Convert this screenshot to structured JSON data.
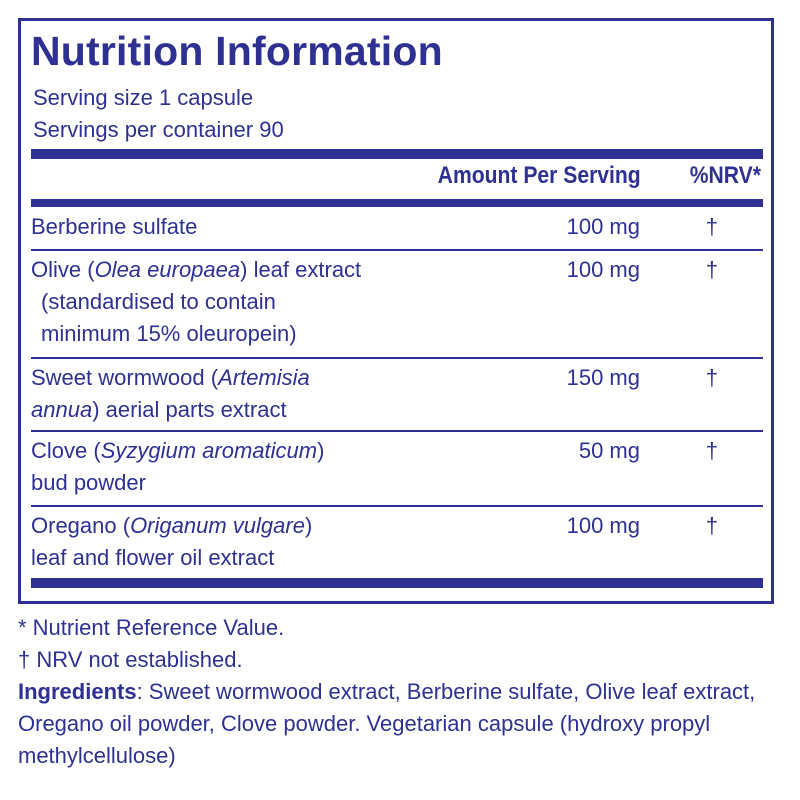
{
  "panel": {
    "title": "Nutrition Information",
    "serving_size": "Serving size  1 capsule",
    "servings_per_container": "Servings per container  90",
    "header": {
      "amount": "Amount Per Serving",
      "nrv": "%NRV*"
    },
    "rows": [
      {
        "name_plain": "Berberine sulfate",
        "amount": "100 mg",
        "nrv": "†"
      },
      {
        "name_a": "Olive (",
        "name_italic": "Olea europaea",
        "name_b": ") leaf extract",
        "name_cont1": "(standardised to contain",
        "name_cont2": "minimum 15% oleuropein)",
        "amount": "100 mg",
        "nrv": "†"
      },
      {
        "name_a": "Sweet wormwood (",
        "name_italic": "Artemisia",
        "name_line2_italic": "annua",
        "name_line2": ") aerial parts extract",
        "amount": "150 mg",
        "nrv": "†"
      },
      {
        "name_a": "Clove (",
        "name_italic": "Syzygium aromaticum",
        "name_b": ")",
        "name_line2": "bud powder",
        "amount": "50 mg",
        "nrv": "†"
      },
      {
        "name_a": "Oregano (",
        "name_italic": "Origanum vulgare",
        "name_b": ")",
        "name_line2": "leaf and flower oil extract",
        "amount": "100 mg",
        "nrv": "†"
      }
    ]
  },
  "footnotes": {
    "nrv_def": "* Nutrient Reference Value.",
    "nrv_not": "† NRV not established.",
    "ingredients_label": "Ingredients",
    "ingredients_text": ": Sweet wormwood extract, Berberine sulfate, Olive leaf extract, Oregano oil powder, Clove powder. Vegetarian capsule (hydroxy propyl methylcellulose)"
  },
  "colors": {
    "brand_blue": "#2e3192",
    "background": "#ffffff"
  }
}
